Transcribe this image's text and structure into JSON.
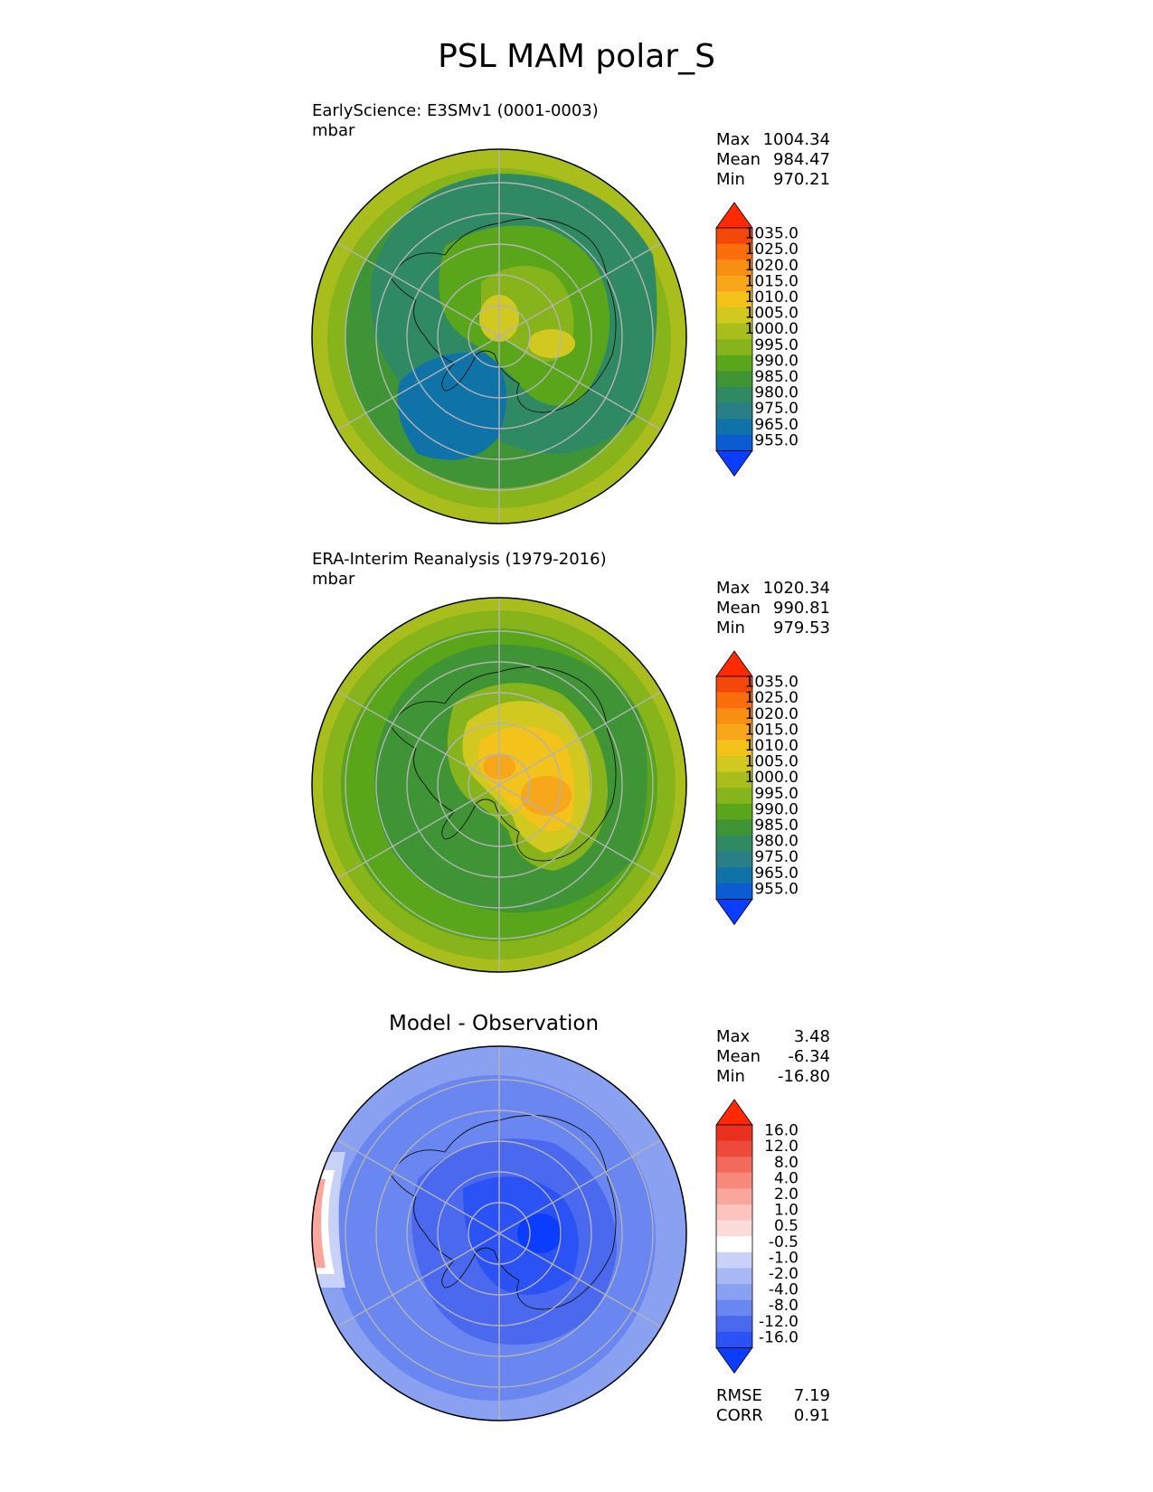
{
  "title": "PSL MAM polar_S",
  "panels": [
    {
      "title": "EarlyScience: E3SMv1 (0001-0003)",
      "units": "mbar",
      "stats": [
        {
          "label": "Max",
          "value": "1004.34"
        },
        {
          "label": "Mean",
          "value": "984.47"
        },
        {
          "label": "Min",
          "value": "970.21"
        }
      ]
    },
    {
      "title": "ERA-Interim Reanalysis (1979-2016)",
      "units": "mbar",
      "stats": [
        {
          "label": "Max",
          "value": "1020.34"
        },
        {
          "label": "Mean",
          "value": "990.81"
        },
        {
          "label": "Min",
          "value": "979.53"
        }
      ]
    },
    {
      "title": "Model - Observation",
      "stats": [
        {
          "label": "Max",
          "value": "3.48"
        },
        {
          "label": "Mean",
          "value": "-6.34"
        },
        {
          "label": "Min",
          "value": "-16.80"
        }
      ],
      "metrics": [
        {
          "label": "RMSE",
          "value": "7.19"
        },
        {
          "label": "CORR",
          "value": "0.91"
        }
      ]
    }
  ],
  "chart_data": [
    {
      "type": "heatmap",
      "projection": "south polar stereographic",
      "title": "EarlyScience: E3SMv1 (0001-0003)",
      "units": "mbar",
      "colorbar": {
        "levels": [
          "955.0",
          "965.0",
          "975.0",
          "980.0",
          "985.0",
          "990.0",
          "995.0",
          "1000.0",
          "1005.0",
          "1010.0",
          "1015.0",
          "1020.0",
          "1025.0",
          "1035.0"
        ],
        "colors": [
          "#0a3dff",
          "#0b5cd0",
          "#0f73a8",
          "#2a7e86",
          "#2f8a63",
          "#3f9535",
          "#5aa61b",
          "#86b41a",
          "#a9be1c",
          "#d1c820",
          "#f3c21b",
          "#f8a71a",
          "#f88f12",
          "#fb6e0b",
          "#f4480b",
          "#ff2a00"
        ],
        "extend": "both"
      },
      "stats": {
        "max": 1004.34,
        "mean": 984.47,
        "min": 970.21
      }
    },
    {
      "type": "heatmap",
      "projection": "south polar stereographic",
      "title": "ERA-Interim Reanalysis (1979-2016)",
      "units": "mbar",
      "colorbar": {
        "levels": [
          "955.0",
          "965.0",
          "975.0",
          "980.0",
          "985.0",
          "990.0",
          "995.0",
          "1000.0",
          "1005.0",
          "1010.0",
          "1015.0",
          "1020.0",
          "1025.0",
          "1035.0"
        ],
        "colors": [
          "#0a3dff",
          "#0b5cd0",
          "#0f73a8",
          "#2a7e86",
          "#2f8a63",
          "#3f9535",
          "#5aa61b",
          "#86b41a",
          "#a9be1c",
          "#d1c820",
          "#f3c21b",
          "#f8a71a",
          "#f88f12",
          "#fb6e0b",
          "#f4480b",
          "#ff2a00"
        ],
        "extend": "both"
      },
      "stats": {
        "max": 1020.34,
        "mean": 990.81,
        "min": 979.53
      }
    },
    {
      "type": "heatmap",
      "projection": "south polar stereographic",
      "title": "Model - Observation",
      "colorbar": {
        "levels": [
          "-16.0",
          "-12.0",
          "-8.0",
          "-4.0",
          "-2.0",
          "-1.0",
          "-0.5",
          "0.5",
          "1.0",
          "2.0",
          "4.0",
          "8.0",
          "12.0",
          "16.0"
        ],
        "colors": [
          "#0a3dff",
          "#2b52f5",
          "#4a69ef",
          "#6a86f0",
          "#8aa1f2",
          "#a8b8f4",
          "#c8d2f8",
          "#ffffff",
          "#fbdcd8",
          "#fbc4bd",
          "#f9a79d",
          "#f6897c",
          "#f26a5b",
          "#ee4a3b",
          "#e8321f",
          "#ff2a00"
        ],
        "extend": "both"
      },
      "stats": {
        "max": 3.48,
        "mean": -6.34,
        "min": -16.8
      },
      "metrics": {
        "rmse": 7.19,
        "corr": 0.91
      }
    }
  ]
}
